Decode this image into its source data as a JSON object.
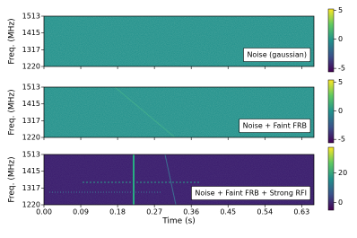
{
  "chart_data": [
    {
      "type": "heatmap",
      "ylabel": "Freq. (MHz)",
      "annotation": "Noise (gaussian)",
      "xlim": [
        0,
        0.66
      ],
      "ylim": [
        1220,
        1513
      ],
      "yticks": [
        1513,
        1415,
        1317,
        1220
      ],
      "clim": [
        -5.6,
        5.2
      ],
      "cticks": [
        5,
        0,
        -5
      ],
      "color": "#21918c"
    },
    {
      "type": "heatmap",
      "ylabel": "Freq. (MHz)",
      "annotation": "Noise + Faint FRB",
      "xlim": [
        0,
        0.66
      ],
      "ylim": [
        1220,
        1513
      ],
      "yticks": [
        1513,
        1415,
        1317,
        1220
      ],
      "clim": [
        -5.6,
        5.4
      ],
      "cticks": [
        5,
        0,
        -5
      ],
      "color": "#21918c"
    },
    {
      "type": "heatmap",
      "ylabel": "Freq. (MHz)",
      "annotation": "Noise + Faint FRB + Strong RFI",
      "xlabel": "Time (s)",
      "xlim": [
        0,
        0.66
      ],
      "ylim": [
        1220,
        1513
      ],
      "yticks": [
        1513,
        1415,
        1317,
        1220
      ],
      "xticks": [
        {
          "value": 0,
          "label": "0.00"
        },
        0.09,
        0.18,
        0.27,
        0.36,
        0.45,
        0.54,
        0.63
      ],
      "clim": [
        -5,
        37
      ],
      "cticks": [
        20,
        0
      ],
      "color": "#3b1c6e"
    }
  ]
}
